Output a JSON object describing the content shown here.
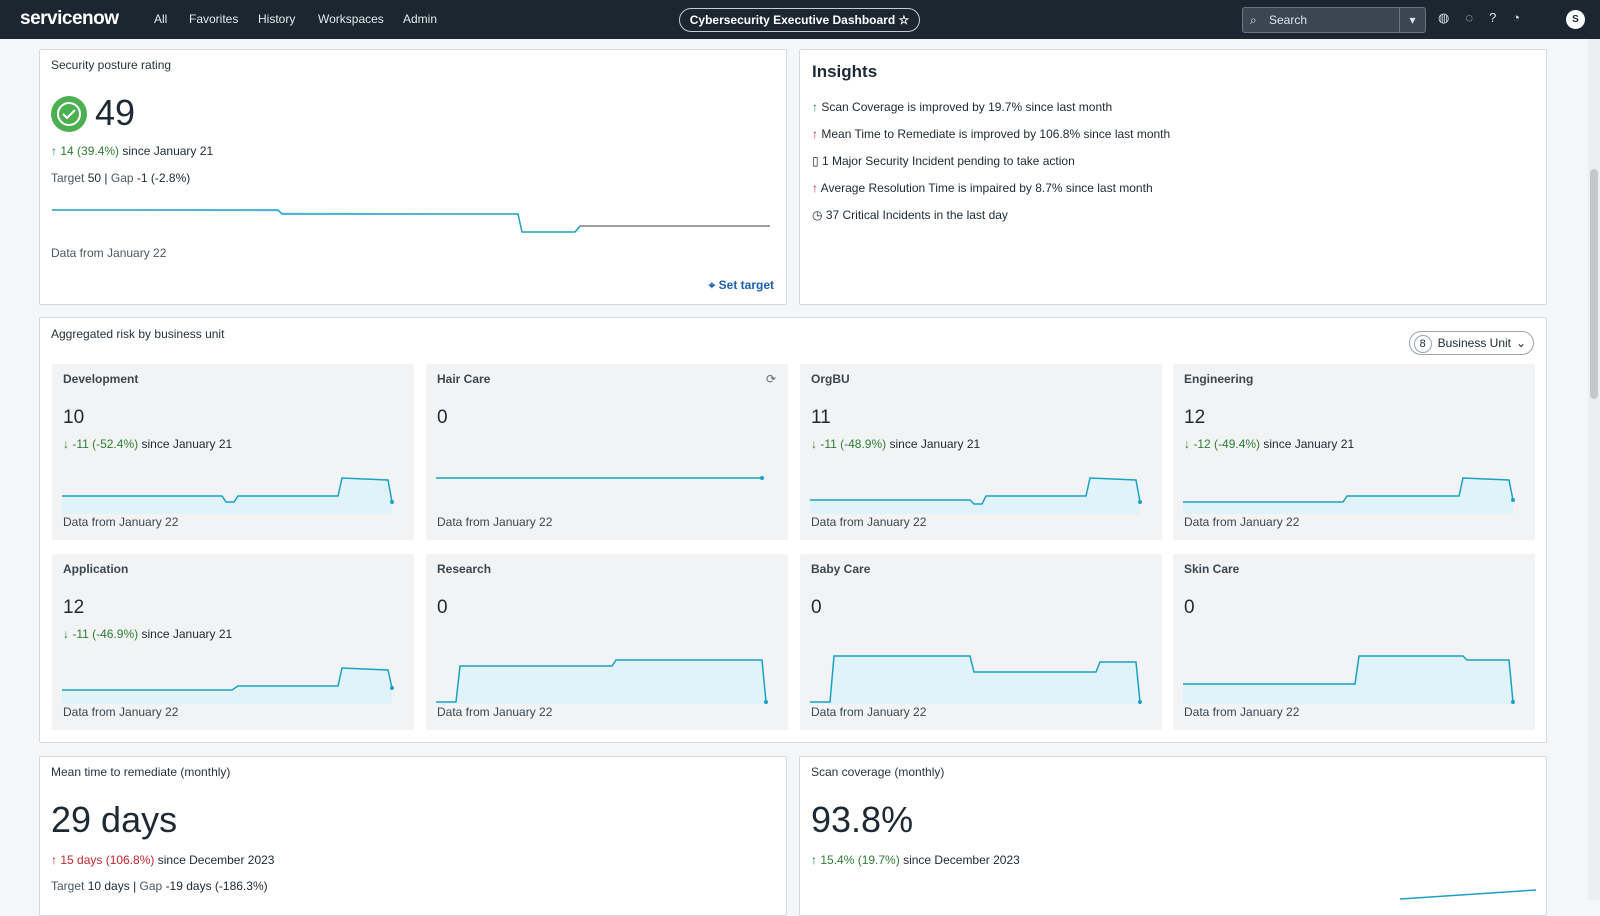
{
  "nav": {
    "logo": "servicenow",
    "items": [
      "All",
      "Favorites",
      "History",
      "Workspaces",
      "Admin"
    ],
    "dashboard_title": "Cybersecurity Executive Dashboard",
    "search_placeholder": "Search",
    "avatar": "S"
  },
  "posture": {
    "title": "Security posture rating",
    "value": "49",
    "change": "14 (39.4%)",
    "since": "since January 21",
    "target_label": "Target",
    "target": "50",
    "gap_label": "Gap",
    "gap": "-1 (-2.8%)",
    "data_from": "Data from January 22",
    "set_target": "Set target"
  },
  "insights": {
    "title": "Insights",
    "items": [
      "Scan Coverage is improved by 19.7% since last month",
      "Mean Time to Remediate is improved by 106.8% since last month",
      "1 Major Security Incident pending to take action",
      "Average Resolution Time is impaired by 8.7% since last month",
      "37 Critical Incidents in the last day"
    ]
  },
  "risk": {
    "title": "Aggregated risk by business unit",
    "filter_count": "8",
    "filter_label": "Business Unit",
    "units": [
      {
        "name": "Development",
        "value": "10",
        "change": "-11 (-52.4%)",
        "since": "since January 21",
        "data_from": "Data from January 22"
      },
      {
        "name": "Hair Care",
        "value": "0",
        "data_from": "Data from January 22"
      },
      {
        "name": "OrgBU",
        "value": "11",
        "change": "-11 (-48.9%)",
        "since": "since January 21",
        "data_from": "Data from January 22"
      },
      {
        "name": "Engineering",
        "value": "12",
        "change": "-12 (-49.4%)",
        "since": "since January 21",
        "data_from": "Data from January 22"
      },
      {
        "name": "Application",
        "value": "12",
        "change": "-11 (-46.9%)",
        "since": "since January 21",
        "data_from": "Data from January 22"
      },
      {
        "name": "Research",
        "value": "0",
        "data_from": "Data from January 22"
      },
      {
        "name": "Baby Care",
        "value": "0",
        "data_from": "Data from January 22"
      },
      {
        "name": "Skin Care",
        "value": "0",
        "data_from": "Data from January 22"
      }
    ]
  },
  "mttr": {
    "title": "Mean time to remediate (monthly)",
    "value": "29 days",
    "change": "15 days (106.8%)",
    "since": "since December 2023",
    "target_label": "Target",
    "target": "10 days",
    "gap_label": "Gap",
    "gap": "-19 days (-186.3%)"
  },
  "scan": {
    "title": "Scan coverage (monthly)",
    "value": "93.8%",
    "change": "15.4% (19.7%)",
    "since": "since December 2023"
  }
}
